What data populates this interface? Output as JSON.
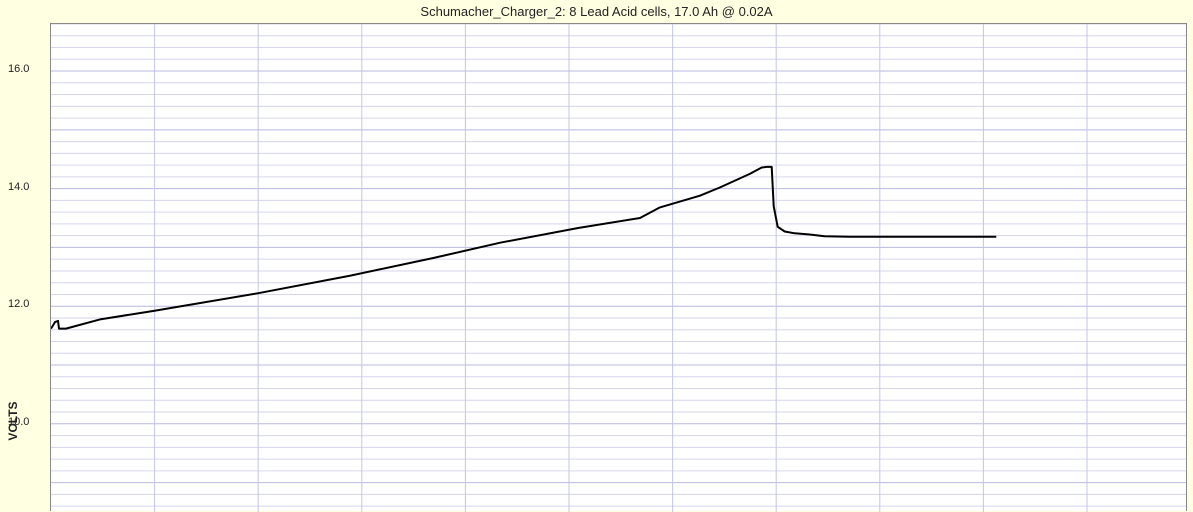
{
  "chart_data": {
    "type": "line",
    "title": "Schumacher_Charger_2: 8 Lead Acid cells, 17.0 Ah @ 0.02A",
    "ylabel": "VOLTS",
    "xlabel": "",
    "ylim": [
      8.5,
      16.8
    ],
    "xlim": [
      0,
      1137
    ],
    "yticks": [
      "16.0",
      "14.0",
      "12.0",
      "10.0"
    ],
    "ytick_values": [
      16.0,
      14.0,
      12.0,
      10.0
    ],
    "grid": true,
    "series": [
      {
        "color": "#000000",
        "x": [
          0,
          4,
          7,
          8,
          15,
          50,
          103,
          207,
          300,
          383,
          450,
          528,
          590,
          610,
          650,
          670,
          700,
          712,
          717,
          722,
          724,
          728,
          735,
          745,
          760,
          775,
          800,
          850,
          900,
          947
        ],
        "y": [
          11.62,
          11.73,
          11.75,
          11.62,
          11.62,
          11.78,
          11.92,
          12.22,
          12.52,
          12.82,
          13.08,
          13.33,
          13.5,
          13.68,
          13.88,
          14.02,
          14.25,
          14.36,
          14.37,
          14.37,
          13.7,
          13.35,
          13.27,
          13.24,
          13.22,
          13.19,
          13.18,
          13.18,
          13.18,
          13.18
        ]
      }
    ]
  }
}
